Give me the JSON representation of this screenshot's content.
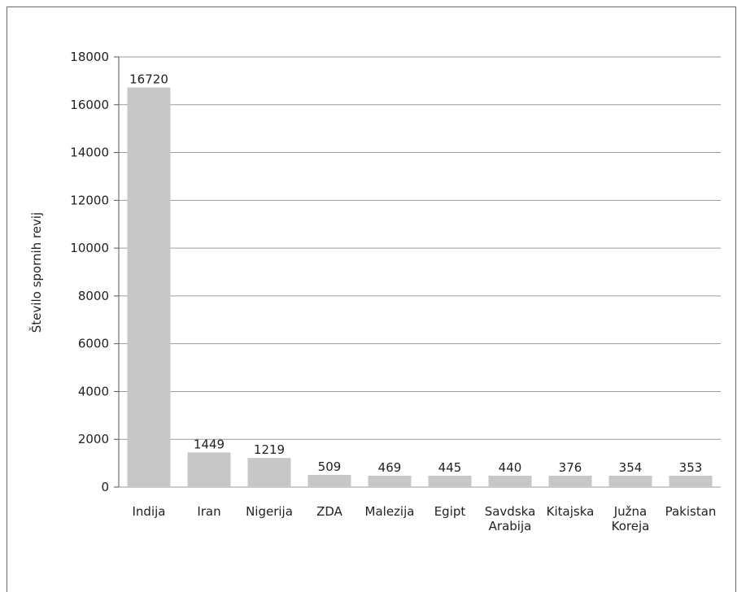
{
  "chart_data": {
    "type": "bar",
    "title": "",
    "xlabel": "",
    "ylabel": "Število spornih revij",
    "ylim": [
      0,
      18000
    ],
    "yticks": [
      0,
      2000,
      4000,
      6000,
      8000,
      10000,
      12000,
      14000,
      16000,
      18000
    ],
    "grid": true,
    "categories": [
      [
        "Indija"
      ],
      [
        "Iran"
      ],
      [
        "Nigerija"
      ],
      [
        "ZDA"
      ],
      [
        "Malezija"
      ],
      [
        "Egipt"
      ],
      [
        "Savdska",
        "Arabija"
      ],
      [
        "Kitajska"
      ],
      [
        "Južna",
        "Koreja"
      ],
      [
        "Pakistan"
      ]
    ],
    "values": [
      16720,
      1449,
      1219,
      509,
      469,
      445,
      440,
      376,
      354,
      353
    ],
    "bar_color": "#c7c7c7",
    "grid_color": "#9a9a9a"
  }
}
